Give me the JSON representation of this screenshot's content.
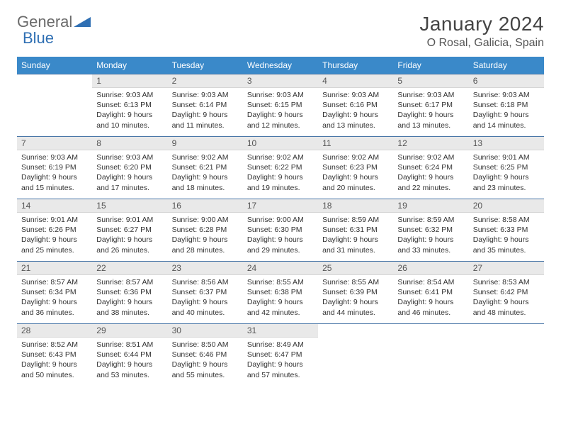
{
  "brand": {
    "part1": "General",
    "part2": "Blue"
  },
  "title": "January 2024",
  "location": "O Rosal, Galicia, Spain",
  "colors": {
    "header_bg": "#3a89c9",
    "header_text": "#ffffff",
    "daynum_bg": "#e9e9e9",
    "row_border": "#4a77a8",
    "body_text": "#333333",
    "logo_gray": "#6a6a6a",
    "logo_blue": "#2f6fb3"
  },
  "day_headers": [
    "Sunday",
    "Monday",
    "Tuesday",
    "Wednesday",
    "Thursday",
    "Friday",
    "Saturday"
  ],
  "start_offset": 1,
  "days": [
    {
      "n": 1,
      "sunrise": "9:03 AM",
      "sunset": "6:13 PM",
      "daylight": "9 hours and 10 minutes."
    },
    {
      "n": 2,
      "sunrise": "9:03 AM",
      "sunset": "6:14 PM",
      "daylight": "9 hours and 11 minutes."
    },
    {
      "n": 3,
      "sunrise": "9:03 AM",
      "sunset": "6:15 PM",
      "daylight": "9 hours and 12 minutes."
    },
    {
      "n": 4,
      "sunrise": "9:03 AM",
      "sunset": "6:16 PM",
      "daylight": "9 hours and 13 minutes."
    },
    {
      "n": 5,
      "sunrise": "9:03 AM",
      "sunset": "6:17 PM",
      "daylight": "9 hours and 13 minutes."
    },
    {
      "n": 6,
      "sunrise": "9:03 AM",
      "sunset": "6:18 PM",
      "daylight": "9 hours and 14 minutes."
    },
    {
      "n": 7,
      "sunrise": "9:03 AM",
      "sunset": "6:19 PM",
      "daylight": "9 hours and 15 minutes."
    },
    {
      "n": 8,
      "sunrise": "9:03 AM",
      "sunset": "6:20 PM",
      "daylight": "9 hours and 17 minutes."
    },
    {
      "n": 9,
      "sunrise": "9:02 AM",
      "sunset": "6:21 PM",
      "daylight": "9 hours and 18 minutes."
    },
    {
      "n": 10,
      "sunrise": "9:02 AM",
      "sunset": "6:22 PM",
      "daylight": "9 hours and 19 minutes."
    },
    {
      "n": 11,
      "sunrise": "9:02 AM",
      "sunset": "6:23 PM",
      "daylight": "9 hours and 20 minutes."
    },
    {
      "n": 12,
      "sunrise": "9:02 AM",
      "sunset": "6:24 PM",
      "daylight": "9 hours and 22 minutes."
    },
    {
      "n": 13,
      "sunrise": "9:01 AM",
      "sunset": "6:25 PM",
      "daylight": "9 hours and 23 minutes."
    },
    {
      "n": 14,
      "sunrise": "9:01 AM",
      "sunset": "6:26 PM",
      "daylight": "9 hours and 25 minutes."
    },
    {
      "n": 15,
      "sunrise": "9:01 AM",
      "sunset": "6:27 PM",
      "daylight": "9 hours and 26 minutes."
    },
    {
      "n": 16,
      "sunrise": "9:00 AM",
      "sunset": "6:28 PM",
      "daylight": "9 hours and 28 minutes."
    },
    {
      "n": 17,
      "sunrise": "9:00 AM",
      "sunset": "6:30 PM",
      "daylight": "9 hours and 29 minutes."
    },
    {
      "n": 18,
      "sunrise": "8:59 AM",
      "sunset": "6:31 PM",
      "daylight": "9 hours and 31 minutes."
    },
    {
      "n": 19,
      "sunrise": "8:59 AM",
      "sunset": "6:32 PM",
      "daylight": "9 hours and 33 minutes."
    },
    {
      "n": 20,
      "sunrise": "8:58 AM",
      "sunset": "6:33 PM",
      "daylight": "9 hours and 35 minutes."
    },
    {
      "n": 21,
      "sunrise": "8:57 AM",
      "sunset": "6:34 PM",
      "daylight": "9 hours and 36 minutes."
    },
    {
      "n": 22,
      "sunrise": "8:57 AM",
      "sunset": "6:36 PM",
      "daylight": "9 hours and 38 minutes."
    },
    {
      "n": 23,
      "sunrise": "8:56 AM",
      "sunset": "6:37 PM",
      "daylight": "9 hours and 40 minutes."
    },
    {
      "n": 24,
      "sunrise": "8:55 AM",
      "sunset": "6:38 PM",
      "daylight": "9 hours and 42 minutes."
    },
    {
      "n": 25,
      "sunrise": "8:55 AM",
      "sunset": "6:39 PM",
      "daylight": "9 hours and 44 minutes."
    },
    {
      "n": 26,
      "sunrise": "8:54 AM",
      "sunset": "6:41 PM",
      "daylight": "9 hours and 46 minutes."
    },
    {
      "n": 27,
      "sunrise": "8:53 AM",
      "sunset": "6:42 PM",
      "daylight": "9 hours and 48 minutes."
    },
    {
      "n": 28,
      "sunrise": "8:52 AM",
      "sunset": "6:43 PM",
      "daylight": "9 hours and 50 minutes."
    },
    {
      "n": 29,
      "sunrise": "8:51 AM",
      "sunset": "6:44 PM",
      "daylight": "9 hours and 53 minutes."
    },
    {
      "n": 30,
      "sunrise": "8:50 AM",
      "sunset": "6:46 PM",
      "daylight": "9 hours and 55 minutes."
    },
    {
      "n": 31,
      "sunrise": "8:49 AM",
      "sunset": "6:47 PM",
      "daylight": "9 hours and 57 minutes."
    }
  ],
  "labels": {
    "sunrise": "Sunrise:",
    "sunset": "Sunset:",
    "daylight": "Daylight:"
  }
}
